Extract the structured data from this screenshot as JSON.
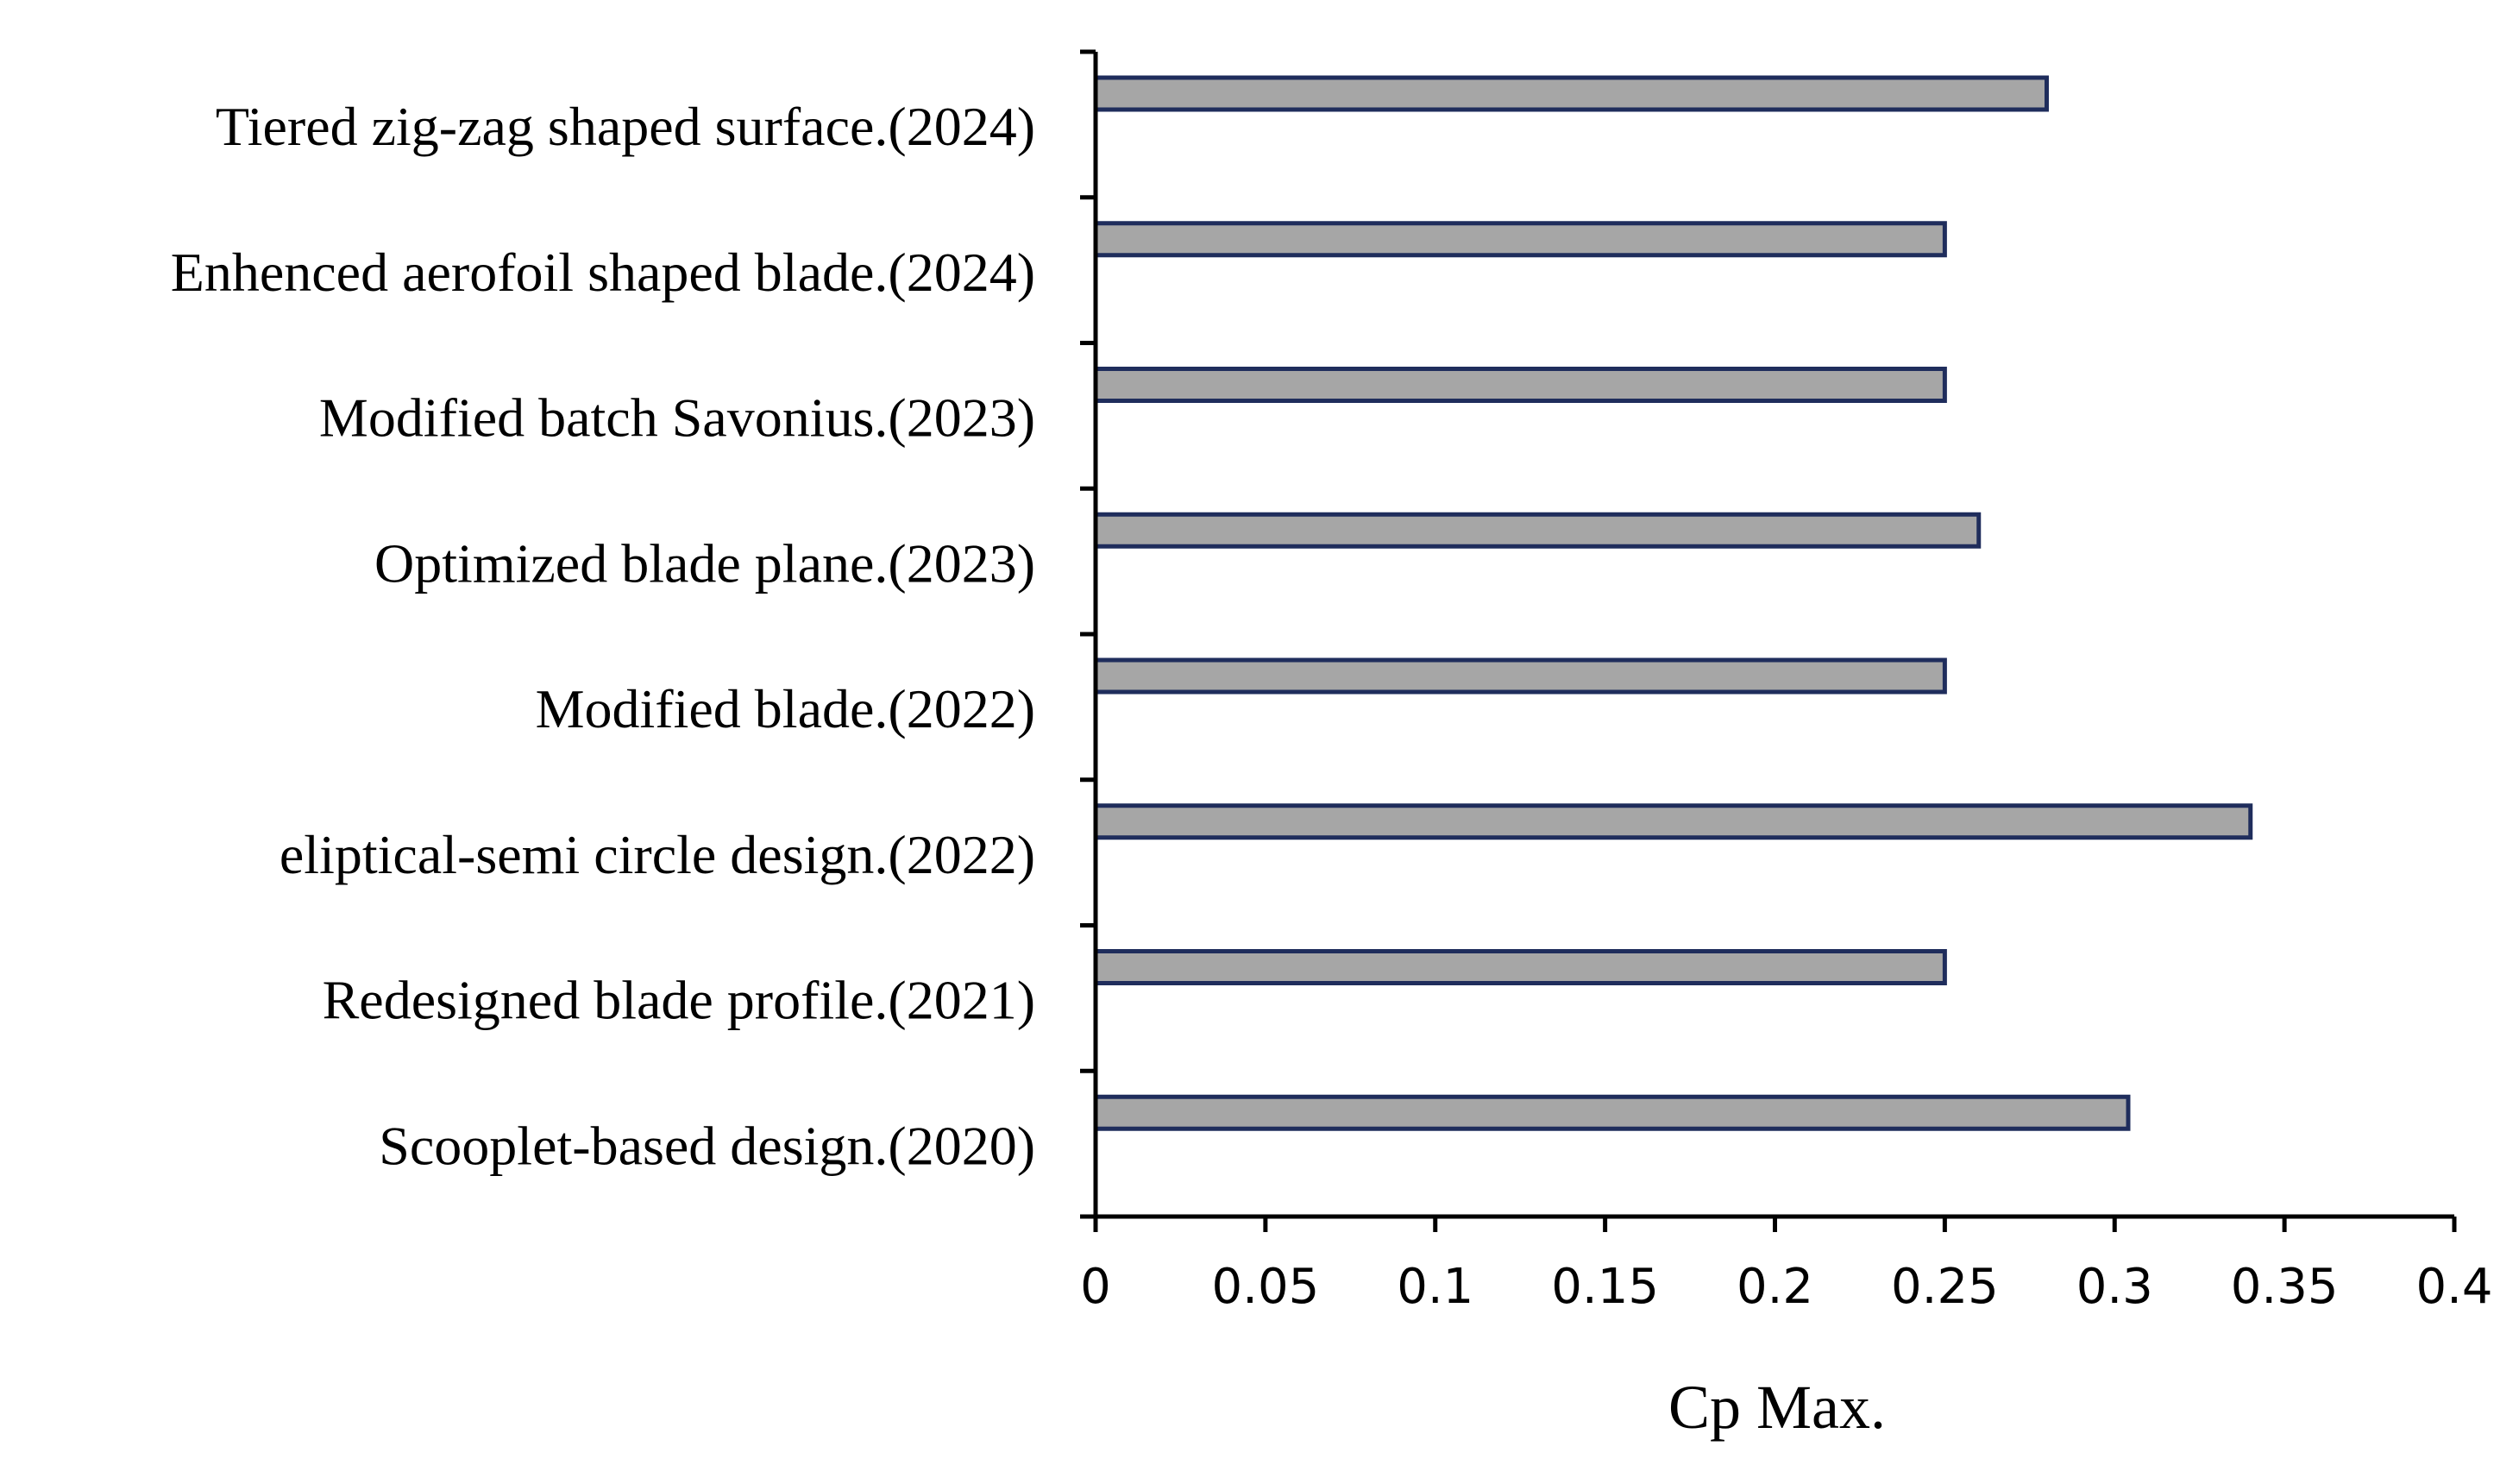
{
  "chart_data": {
    "type": "bar",
    "orientation": "horizontal",
    "categories": [
      "Tiered zig-zag shaped surface.(2024)",
      "Enhenced aerofoil shaped blade.(2024)",
      "Modified batch Savonius.(2023)",
      "Optimized blade plane.(2023)",
      "Modified blade.(2022)",
      "eliptical-semi circle design.(2022)",
      "Redesigned blade profile.(2021)",
      "Scooplet-based design.(2020)"
    ],
    "values": [
      0.28,
      0.25,
      0.25,
      0.26,
      0.25,
      0.34,
      0.25,
      0.304
    ],
    "title": "",
    "xlabel": "Cp Max.",
    "ylabel": "",
    "xlim": [
      0,
      0.4
    ],
    "xticks": [
      "0",
      "0.05",
      "0.1",
      "0.15",
      "0.2",
      "0.25",
      "0.3",
      "0.35",
      "0.4"
    ],
    "grid": false,
    "legend": "none",
    "colors": {
      "bar_fill": "#a6a6a6",
      "bar_edge": "#1f2d5c",
      "axis": "#000000"
    }
  }
}
